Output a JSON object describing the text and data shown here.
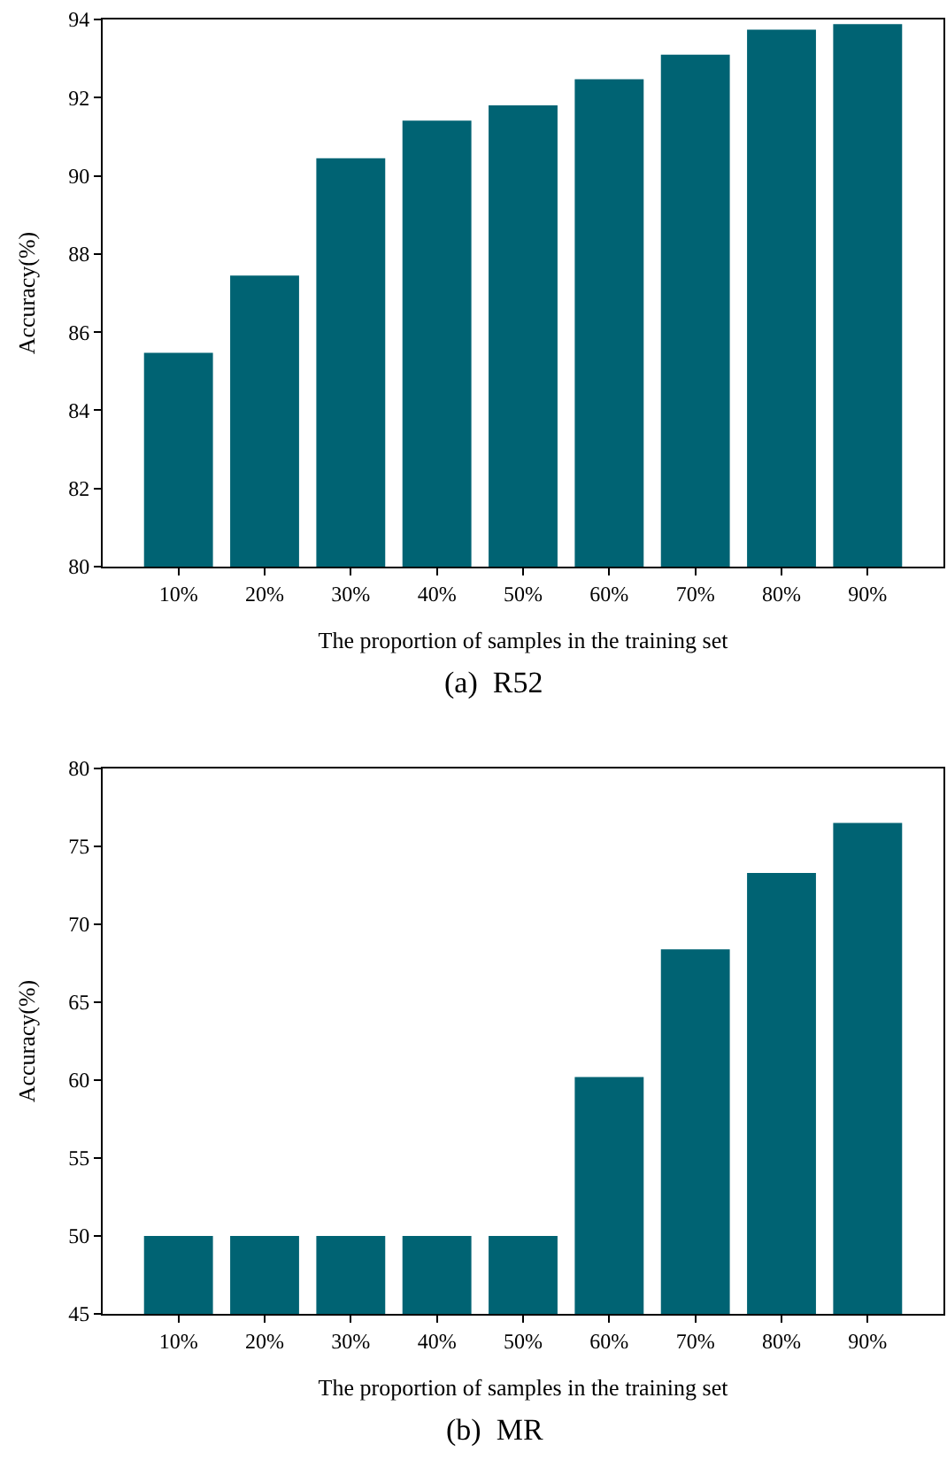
{
  "chart_data": [
    {
      "type": "bar",
      "title": "(a)  R52",
      "xlabel": "The proportion of samples in the training set",
      "ylabel": "Accuracy(%)",
      "categories": [
        "10%",
        "20%",
        "30%",
        "40%",
        "50%",
        "60%",
        "70%",
        "80%",
        "90%"
      ],
      "values": [
        85.47,
        87.45,
        90.45,
        91.41,
        91.8,
        92.47,
        93.1,
        93.74,
        93.88
      ],
      "color": "#006373",
      "ylim": [
        80,
        94
      ],
      "yticks": [
        80,
        82,
        84,
        86,
        88,
        90,
        92,
        94
      ]
    },
    {
      "type": "bar",
      "title": "(b)  MR",
      "xlabel": "The proportion of samples in the training set",
      "ylabel": "Accuracy(%)",
      "categories": [
        "10%",
        "20%",
        "30%",
        "40%",
        "50%",
        "60%",
        "70%",
        "80%",
        "90%"
      ],
      "values": [
        50.0,
        50.0,
        50.0,
        50.0,
        50.0,
        60.2,
        68.4,
        73.3,
        76.5
      ],
      "color": "#006373",
      "ylim": [
        45,
        80
      ],
      "yticks": [
        45,
        50,
        55,
        60,
        65,
        70,
        75,
        80
      ]
    }
  ]
}
